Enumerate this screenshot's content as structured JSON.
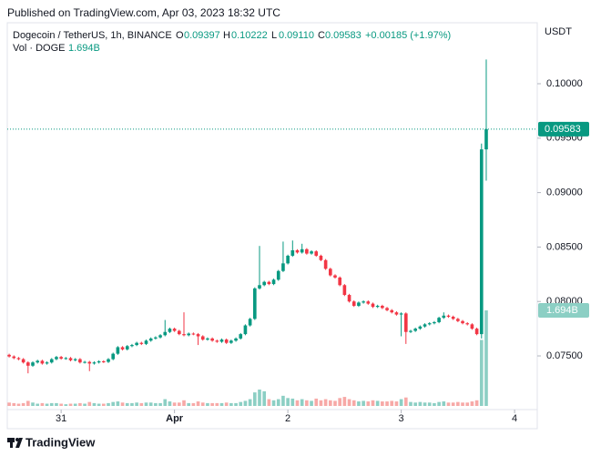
{
  "chart_data": {
    "type": "candlestick",
    "published": "Published on TradingView.com, Apr 03, 2023 18:32 UTC",
    "legend": {
      "symbol": "Dogecoin / TetherUS, 1h, BINANCE",
      "o_label": "O",
      "o": "0.09397",
      "h_label": "H",
      "h": "0.10222",
      "l_label": "L",
      "l": "0.09110",
      "c_label": "C",
      "c": "0.09583",
      "change": "+0.00185 (+1.97%)",
      "volume_name": "Vol · DOGE",
      "volume": "1.694B"
    },
    "currency": "USDT",
    "last_price_label": "0.09583",
    "last_volume_label": "1.694B",
    "brand": "TradingView",
    "up_color": "#089981",
    "down_color": "#f23645",
    "up_volume_color": "#8ccfc4",
    "down_volume_color": "#f7a9a7",
    "grid": false,
    "xlim": [
      -0.4,
      111.8
    ],
    "xticks": [
      {
        "value": 11,
        "label": "31"
      },
      {
        "value": 35,
        "label": "Apr"
      },
      {
        "value": 59,
        "label": "2"
      },
      {
        "value": 83,
        "label": "3"
      },
      {
        "value": 107,
        "label": "4"
      }
    ],
    "ylim": [
      0.07007,
      0.1056
    ],
    "yticks": [
      {
        "value": 0.075,
        "label": "0.07500"
      },
      {
        "value": 0.08,
        "label": "0.08000"
      },
      {
        "value": 0.085,
        "label": "0.08500"
      },
      {
        "value": 0.09,
        "label": "0.09000"
      },
      {
        "value": 0.095,
        "label": "0.09500"
      },
      {
        "value": 0.1,
        "label": "0.10000"
      }
    ],
    "x": [
      0,
      1,
      2,
      3,
      4,
      5,
      6,
      7,
      8,
      9,
      10,
      11,
      12,
      13,
      14,
      15,
      16,
      17,
      18,
      19,
      20,
      21,
      22,
      23,
      24,
      25,
      26,
      27,
      28,
      29,
      30,
      31,
      32,
      33,
      34,
      35,
      36,
      37,
      38,
      39,
      40,
      41,
      42,
      43,
      44,
      45,
      46,
      47,
      48,
      49,
      50,
      51,
      52,
      53,
      54,
      55,
      56,
      57,
      58,
      59,
      60,
      61,
      62,
      63,
      64,
      65,
      66,
      67,
      68,
      69,
      70,
      71,
      72,
      73,
      74,
      75,
      76,
      77,
      78,
      79,
      80,
      81,
      82,
      83,
      84,
      85,
      86,
      87,
      88,
      89,
      90,
      91,
      92,
      93,
      94,
      95,
      96,
      97,
      98,
      99,
      100,
      101
    ],
    "open": [
      0.0751,
      0.07495,
      0.0748,
      0.0747,
      0.0744,
      0.0741,
      0.0744,
      0.07455,
      0.0743,
      0.0744,
      0.0747,
      0.0749,
      0.07475,
      0.0748,
      0.0746,
      0.0747,
      0.0744,
      0.07445,
      0.0743,
      0.0744,
      0.0745,
      0.07445,
      0.0747,
      0.0752,
      0.0758,
      0.0756,
      0.0759,
      0.076,
      0.0762,
      0.0761,
      0.0764,
      0.0766,
      0.0767,
      0.0769,
      0.0772,
      0.0775,
      0.0773,
      0.077,
      0.0769,
      0.07705,
      0.077,
      0.0768,
      0.0765,
      0.0766,
      0.0764,
      0.0763,
      0.0765,
      0.0762,
      0.0764,
      0.0766,
      0.077,
      0.0778,
      0.0784,
      0.0812,
      0.0815,
      0.0818,
      0.0816,
      0.082,
      0.0828,
      0.0835,
      0.0842,
      0.0847,
      0.0845,
      0.0848,
      0.0844,
      0.0846,
      0.0842,
      0.0838,
      0.083,
      0.0824,
      0.0822,
      0.0815,
      0.0806,
      0.08,
      0.0796,
      0.0799,
      0.08,
      0.0798,
      0.0795,
      0.0796,
      0.0794,
      0.0792,
      0.079,
      0.0788,
      0.0789,
      0.0772,
      0.0773,
      0.0775,
      0.0777,
      0.0779,
      0.078,
      0.0781,
      0.0785,
      0.0787,
      0.0786,
      0.0784,
      0.0782,
      0.078,
      0.0779,
      0.0775,
      0.077,
      0.09397
    ],
    "high": [
      0.0752,
      0.07505,
      0.0749,
      0.0748,
      0.0745,
      0.0745,
      0.07465,
      0.07465,
      0.0745,
      0.0748,
      0.075,
      0.075,
      0.0749,
      0.0749,
      0.0748,
      0.0748,
      0.07455,
      0.07455,
      0.0745,
      0.0746,
      0.0746,
      0.0748,
      0.0753,
      0.0759,
      0.0759,
      0.076,
      0.0761,
      0.0763,
      0.0763,
      0.0765,
      0.0767,
      0.0768,
      0.077,
      0.0783,
      0.0776,
      0.0776,
      0.0774,
      0.079,
      0.07715,
      0.07715,
      0.0771,
      0.0769,
      0.0767,
      0.0767,
      0.0765,
      0.0766,
      0.0766,
      0.0765,
      0.0767,
      0.0771,
      0.0779,
      0.0785,
      0.0813,
      0.0851,
      0.0819,
      0.0819,
      0.0821,
      0.0829,
      0.0855,
      0.0843,
      0.0856,
      0.0848,
      0.0853,
      0.0849,
      0.0847,
      0.0847,
      0.0843,
      0.0839,
      0.0831,
      0.0825,
      0.0823,
      0.0816,
      0.0807,
      0.0801,
      0.08,
      0.0801,
      0.0801,
      0.0799,
      0.0797,
      0.0797,
      0.0795,
      0.0793,
      0.0791,
      0.079,
      0.079,
      0.0774,
      0.0776,
      0.0778,
      0.078,
      0.0781,
      0.0782,
      0.0786,
      0.079,
      0.0788,
      0.0787,
      0.0785,
      0.0783,
      0.0781,
      0.078,
      0.0776,
      0.0945,
      0.10222
    ],
    "low": [
      0.07485,
      0.0747,
      0.0746,
      0.0743,
      0.0734,
      0.074,
      0.0743,
      0.0742,
      0.0742,
      0.0743,
      0.0746,
      0.07465,
      0.07465,
      0.0745,
      0.0745,
      0.0743,
      0.0743,
      0.0736,
      0.0742,
      0.0743,
      0.07435,
      0.07435,
      0.0746,
      0.0751,
      0.0755,
      0.0755,
      0.0758,
      0.0759,
      0.076,
      0.076,
      0.0763,
      0.0765,
      0.0766,
      0.0768,
      0.0771,
      0.0772,
      0.0769,
      0.0768,
      0.0768,
      0.0769,
      0.076,
      0.0764,
      0.0764,
      0.0763,
      0.0762,
      0.0762,
      0.0761,
      0.0761,
      0.0763,
      0.0765,
      0.0769,
      0.0777,
      0.0783,
      0.0811,
      0.0814,
      0.0815,
      0.0815,
      0.0819,
      0.0827,
      0.0834,
      0.0841,
      0.0844,
      0.0844,
      0.0843,
      0.0843,
      0.0841,
      0.0837,
      0.0829,
      0.0823,
      0.0821,
      0.0814,
      0.0805,
      0.0799,
      0.0795,
      0.0795,
      0.0798,
      0.0797,
      0.0794,
      0.0794,
      0.0793,
      0.0791,
      0.0789,
      0.0787,
      0.0768,
      0.0761,
      0.0771,
      0.0772,
      0.0774,
      0.0776,
      0.0778,
      0.0779,
      0.078,
      0.0784,
      0.0785,
      0.0783,
      0.0781,
      0.0779,
      0.0778,
      0.0774,
      0.0769,
      0.0766,
      0.0911
    ],
    "close": [
      0.07495,
      0.0748,
      0.0747,
      0.0744,
      0.0741,
      0.0744,
      0.07455,
      0.0743,
      0.0744,
      0.0747,
      0.0749,
      0.07475,
      0.0748,
      0.0746,
      0.0747,
      0.0744,
      0.07445,
      0.0743,
      0.0744,
      0.0745,
      0.07445,
      0.0747,
      0.0752,
      0.0758,
      0.0756,
      0.0759,
      0.076,
      0.0762,
      0.0761,
      0.0764,
      0.0766,
      0.0767,
      0.0769,
      0.0772,
      0.0775,
      0.0773,
      0.077,
      0.0769,
      0.07705,
      0.077,
      0.0768,
      0.0765,
      0.0766,
      0.0764,
      0.0763,
      0.0765,
      0.0762,
      0.0764,
      0.0766,
      0.077,
      0.0778,
      0.0784,
      0.0812,
      0.0815,
      0.0818,
      0.0816,
      0.082,
      0.0828,
      0.0835,
      0.0842,
      0.0847,
      0.0845,
      0.0848,
      0.0844,
      0.0846,
      0.0842,
      0.0838,
      0.083,
      0.0824,
      0.0822,
      0.0815,
      0.0806,
      0.08,
      0.0796,
      0.0799,
      0.08,
      0.0798,
      0.0795,
      0.0796,
      0.0794,
      0.0792,
      0.079,
      0.0788,
      0.0789,
      0.0772,
      0.0773,
      0.0775,
      0.0777,
      0.0779,
      0.078,
      0.0781,
      0.0785,
      0.0787,
      0.0786,
      0.0784,
      0.0782,
      0.078,
      0.0779,
      0.0775,
      0.077,
      0.09397,
      0.09583
    ],
    "volume": [
      0.06,
      0.05,
      0.04,
      0.05,
      0.09,
      0.06,
      0.04,
      0.05,
      0.04,
      0.05,
      0.05,
      0.04,
      0.03,
      0.04,
      0.04,
      0.05,
      0.04,
      0.07,
      0.05,
      0.04,
      0.04,
      0.05,
      0.07,
      0.08,
      0.06,
      0.05,
      0.05,
      0.06,
      0.05,
      0.06,
      0.06,
      0.05,
      0.05,
      0.12,
      0.08,
      0.06,
      0.06,
      0.1,
      0.05,
      0.05,
      0.08,
      0.06,
      0.05,
      0.05,
      0.05,
      0.05,
      0.06,
      0.05,
      0.05,
      0.07,
      0.09,
      0.12,
      0.24,
      0.29,
      0.26,
      0.12,
      0.1,
      0.12,
      0.18,
      0.14,
      0.13,
      0.1,
      0.12,
      0.1,
      0.09,
      0.13,
      0.1,
      0.12,
      0.1,
      0.09,
      0.14,
      0.16,
      0.12,
      0.1,
      0.08,
      0.09,
      0.08,
      0.1,
      0.09,
      0.08,
      0.08,
      0.09,
      0.08,
      0.12,
      0.15,
      0.07,
      0.06,
      0.07,
      0.06,
      0.06,
      0.05,
      0.07,
      0.08,
      0.06,
      0.06,
      0.07,
      0.06,
      0.06,
      0.08,
      0.1,
      1.17,
      1.694
    ]
  }
}
